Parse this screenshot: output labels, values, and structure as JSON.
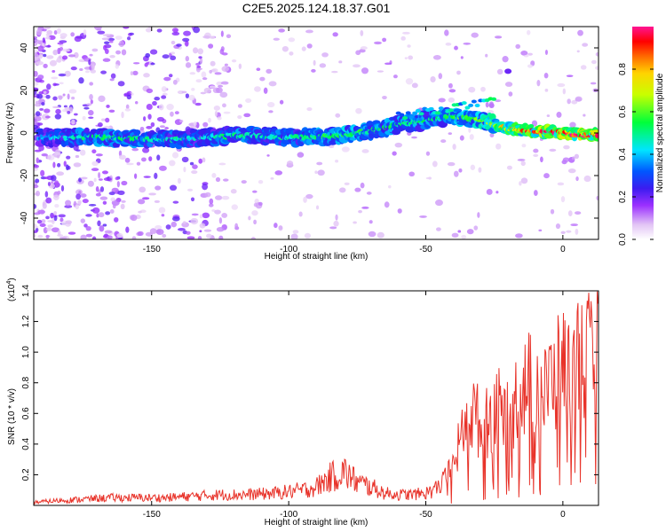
{
  "title": "C2E5.2025.124.18.37.G01",
  "chart_data": [
    {
      "type": "heatmap",
      "xlabel": "Height of straight line (km)",
      "ylabel": "Frequency (Hz)",
      "xlim": [
        -193,
        13
      ],
      "ylim": [
        -50,
        50
      ],
      "xticks": [
        -150,
        -100,
        -50,
        0
      ],
      "xtick_labels": [
        "-150",
        "-100",
        "-50",
        "0"
      ],
      "yticks": [
        -40,
        -20,
        0,
        20,
        40
      ],
      "ytick_labels": [
        "-40",
        "-20",
        "0",
        "20",
        "40"
      ],
      "colorbar": {
        "label": "Normalized spectral amplitude",
        "range": [
          0,
          1
        ],
        "ticks": [
          0,
          0.2,
          0.4,
          0.6,
          0.8
        ],
        "tick_labels": [
          "0.0",
          "0.2",
          "0.4",
          "0.6",
          "0.8"
        ]
      },
      "ridge": {
        "x": [
          -190,
          -180,
          -170,
          -160,
          -150,
          -140,
          -130,
          -120,
          -110,
          -100,
          -90,
          -80,
          -70,
          -60,
          -50,
          -40,
          -30,
          -20,
          -10,
          0,
          10
        ],
        "y": [
          -2,
          -2,
          -2,
          -2.5,
          -3,
          -3,
          -2,
          -1,
          -1.5,
          -2,
          -2,
          -1,
          1,
          4,
          6,
          8,
          6,
          2,
          1,
          0,
          -1
        ],
        "amplitude": [
          0.35,
          0.45,
          0.5,
          0.5,
          0.45,
          0.45,
          0.4,
          0.5,
          0.45,
          0.45,
          0.5,
          0.55,
          0.5,
          0.5,
          0.5,
          0.55,
          0.6,
          0.75,
          0.85,
          0.9,
          0.95
        ]
      }
    },
    {
      "type": "line",
      "xlabel": "Height of straight line (km)",
      "ylabel": "SNR (10 * v/v)",
      "y_multiplier_label": "(x10",
      "y_multiplier_exp": "4",
      "y_multiplier_close": ")",
      "xlim": [
        -193,
        13
      ],
      "ylim": [
        0,
        1.4
      ],
      "xticks": [
        -150,
        -100,
        -50,
        0
      ],
      "xtick_labels": [
        "-150",
        "-100",
        "-50",
        "0"
      ],
      "yticks": [
        0.2,
        0.4,
        0.6,
        0.8,
        1.0,
        1.2,
        1.4
      ],
      "ytick_labels": [
        "0.2",
        "0.4",
        "0.6",
        "0.8",
        "1.0",
        "1.2",
        "1.4"
      ],
      "color": "#e8332a",
      "series": [
        {
          "x": [
            -193,
            -185,
            -175,
            -165,
            -155,
            -145,
            -135,
            -125,
            -115,
            -105,
            -95,
            -90,
            -85,
            -80,
            -75,
            -70,
            -65,
            -60,
            -55,
            -50,
            -45,
            -40,
            -37,
            -35,
            -32,
            -30,
            -27,
            -25,
            -22,
            -20,
            -17,
            -15,
            -12,
            -10,
            -7,
            -5,
            -2,
            0,
            3,
            5,
            8,
            10,
            12,
            13
          ],
          "y": [
            0.02,
            0.03,
            0.04,
            0.05,
            0.05,
            0.05,
            0.06,
            0.07,
            0.07,
            0.08,
            0.1,
            0.12,
            0.18,
            0.22,
            0.15,
            0.12,
            0.08,
            0.07,
            0.07,
            0.08,
            0.12,
            0.25,
            0.45,
            0.55,
            0.6,
            0.5,
            0.55,
            0.65,
            0.6,
            0.55,
            0.7,
            0.75,
            0.8,
            0.85,
            0.7,
            0.8,
            0.85,
            0.9,
            0.85,
            0.95,
            1.0,
            0.95,
            0.8,
            1.25
          ]
        }
      ]
    }
  ]
}
